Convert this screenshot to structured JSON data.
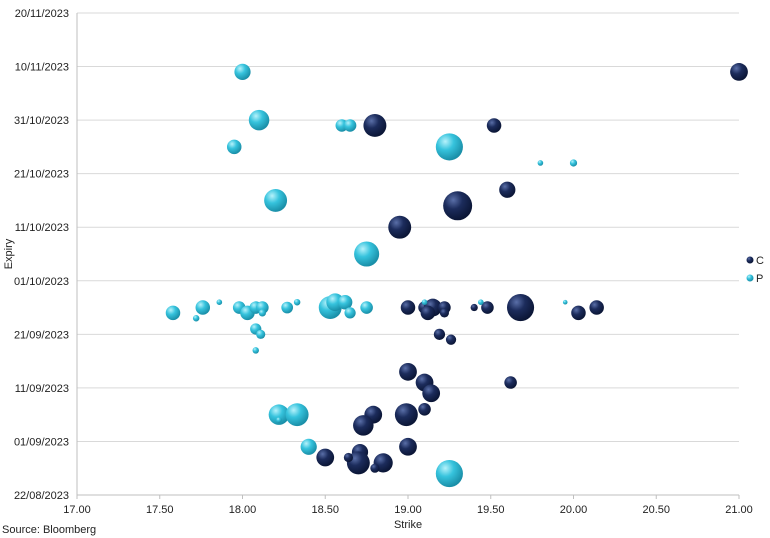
{
  "chart_data": {
    "type": "scatter",
    "xlabel": "Strike",
    "ylabel": "Expiry",
    "xlim": [
      17.0,
      21.0
    ],
    "ylim": [
      "22/08/2023",
      "20/11/2023"
    ],
    "x_ticks": [
      "17.00",
      "17.50",
      "18.00",
      "18.50",
      "19.00",
      "19.50",
      "20.00",
      "20.50",
      "21.00"
    ],
    "y_ticks": [
      "22/08/2023",
      "01/09/2023",
      "11/09/2023",
      "21/09/2023",
      "01/10/2023",
      "11/10/2023",
      "21/10/2023",
      "31/10/2023",
      "10/11/2023",
      "20/11/2023"
    ],
    "grid": "horizontal",
    "legend_position": "right",
    "source": "Source: Bloomberg",
    "colors": {
      "C": "#16264f",
      "P": "#2ab8d4"
    },
    "series": [
      {
        "name": "C",
        "points": [
          {
            "x": 21.0,
            "y": "09/11/2023",
            "size": 3
          },
          {
            "x": 18.8,
            "y": "30/10/2023",
            "size": 5
          },
          {
            "x": 19.52,
            "y": "30/10/2023",
            "size": 2
          },
          {
            "x": 19.6,
            "y": "18/10/2023",
            "size": 2.5
          },
          {
            "x": 19.3,
            "y": "15/10/2023",
            "size": 8
          },
          {
            "x": 18.95,
            "y": "11/10/2023",
            "size": 5
          },
          {
            "x": 19.68,
            "y": "26/09/2023",
            "size": 7
          },
          {
            "x": 19.0,
            "y": "26/09/2023",
            "size": 2
          },
          {
            "x": 19.1,
            "y": "26/09/2023",
            "size": 1.5
          },
          {
            "x": 19.15,
            "y": "26/09/2023",
            "size": 3
          },
          {
            "x": 19.22,
            "y": "26/09/2023",
            "size": 1.5
          },
          {
            "x": 19.12,
            "y": "25/09/2023",
            "size": 2
          },
          {
            "x": 19.48,
            "y": "26/09/2023",
            "size": 1.5
          },
          {
            "x": 19.4,
            "y": "26/09/2023",
            "size": 0.5
          },
          {
            "x": 20.03,
            "y": "25/09/2023",
            "size": 2
          },
          {
            "x": 20.14,
            "y": "26/09/2023",
            "size": 2
          },
          {
            "x": 19.22,
            "y": "25/09/2023",
            "size": 0.8
          },
          {
            "x": 19.19,
            "y": "21/09/2023",
            "size": 1.2
          },
          {
            "x": 19.26,
            "y": "20/09/2023",
            "size": 1
          },
          {
            "x": 19.0,
            "y": "14/09/2023",
            "size": 3
          },
          {
            "x": 19.1,
            "y": "12/09/2023",
            "size": 3
          },
          {
            "x": 19.14,
            "y": "10/09/2023",
            "size": 3
          },
          {
            "x": 19.62,
            "y": "12/09/2023",
            "size": 1.5
          },
          {
            "x": 19.1,
            "y": "07/09/2023",
            "size": 1.5
          },
          {
            "x": 18.99,
            "y": "06/09/2023",
            "size": 5
          },
          {
            "x": 18.79,
            "y": "06/09/2023",
            "size": 3
          },
          {
            "x": 18.73,
            "y": "04/09/2023",
            "size": 4
          },
          {
            "x": 19.0,
            "y": "31/08/2023",
            "size": 3
          },
          {
            "x": 18.71,
            "y": "30/08/2023",
            "size": 2.5
          },
          {
            "x": 18.5,
            "y": "29/08/2023",
            "size": 3
          },
          {
            "x": 18.7,
            "y": "28/08/2023",
            "size": 5
          },
          {
            "x": 18.85,
            "y": "28/08/2023",
            "size": 3.5
          },
          {
            "x": 18.8,
            "y": "27/08/2023",
            "size": 0.8
          },
          {
            "x": 18.64,
            "y": "29/08/2023",
            "size": 0.8
          }
        ]
      },
      {
        "name": "P",
        "points": [
          {
            "x": 18.0,
            "y": "09/11/2023",
            "size": 2.5
          },
          {
            "x": 18.1,
            "y": "31/10/2023",
            "size": 4
          },
          {
            "x": 18.6,
            "y": "30/10/2023",
            "size": 1.5
          },
          {
            "x": 18.65,
            "y": "30/10/2023",
            "size": 1.5
          },
          {
            "x": 19.25,
            "y": "26/10/2023",
            "size": 7
          },
          {
            "x": 17.95,
            "y": "26/10/2023",
            "size": 2
          },
          {
            "x": 19.8,
            "y": "23/10/2023",
            "size": 0.3
          },
          {
            "x": 20.0,
            "y": "23/10/2023",
            "size": 0.5
          },
          {
            "x": 18.2,
            "y": "16/10/2023",
            "size": 5
          },
          {
            "x": 18.75,
            "y": "06/10/2023",
            "size": 6
          },
          {
            "x": 17.58,
            "y": "25/09/2023",
            "size": 2
          },
          {
            "x": 17.72,
            "y": "24/09/2023",
            "size": 0.4
          },
          {
            "x": 17.76,
            "y": "26/09/2023",
            "size": 2
          },
          {
            "x": 17.86,
            "y": "27/09/2023",
            "size": 0.3
          },
          {
            "x": 17.98,
            "y": "26/09/2023",
            "size": 1.5
          },
          {
            "x": 18.03,
            "y": "25/09/2023",
            "size": 2
          },
          {
            "x": 18.08,
            "y": "26/09/2023",
            "size": 1.5
          },
          {
            "x": 18.12,
            "y": "26/09/2023",
            "size": 1.5
          },
          {
            "x": 18.12,
            "y": "25/09/2023",
            "size": 0.5
          },
          {
            "x": 18.27,
            "y": "26/09/2023",
            "size": 1.3
          },
          {
            "x": 18.33,
            "y": "27/09/2023",
            "size": 0.4
          },
          {
            "x": 18.53,
            "y": "26/09/2023",
            "size": 5
          },
          {
            "x": 18.56,
            "y": "27/09/2023",
            "size": 3
          },
          {
            "x": 18.62,
            "y": "27/09/2023",
            "size": 2
          },
          {
            "x": 18.65,
            "y": "25/09/2023",
            "size": 1.2
          },
          {
            "x": 18.75,
            "y": "26/09/2023",
            "size": 1.5
          },
          {
            "x": 19.1,
            "y": "27/09/2023",
            "size": 0.3
          },
          {
            "x": 19.44,
            "y": "27/09/2023",
            "size": 0.3
          },
          {
            "x": 19.95,
            "y": "27/09/2023",
            "size": 0.2
          },
          {
            "x": 18.08,
            "y": "22/09/2023",
            "size": 1.2
          },
          {
            "x": 18.11,
            "y": "21/09/2023",
            "size": 0.8
          },
          {
            "x": 18.08,
            "y": "18/09/2023",
            "size": 0.4
          },
          {
            "x": 18.22,
            "y": "06/09/2023",
            "size": 4
          },
          {
            "x": 18.33,
            "y": "06/09/2023",
            "size": 5
          },
          {
            "x": 18.22,
            "y": "05/09/2023",
            "size": 0.3
          },
          {
            "x": 18.4,
            "y": "31/08/2023",
            "size": 2.5
          },
          {
            "x": 19.25,
            "y": "26/08/2023",
            "size": 7
          }
        ]
      }
    ]
  }
}
